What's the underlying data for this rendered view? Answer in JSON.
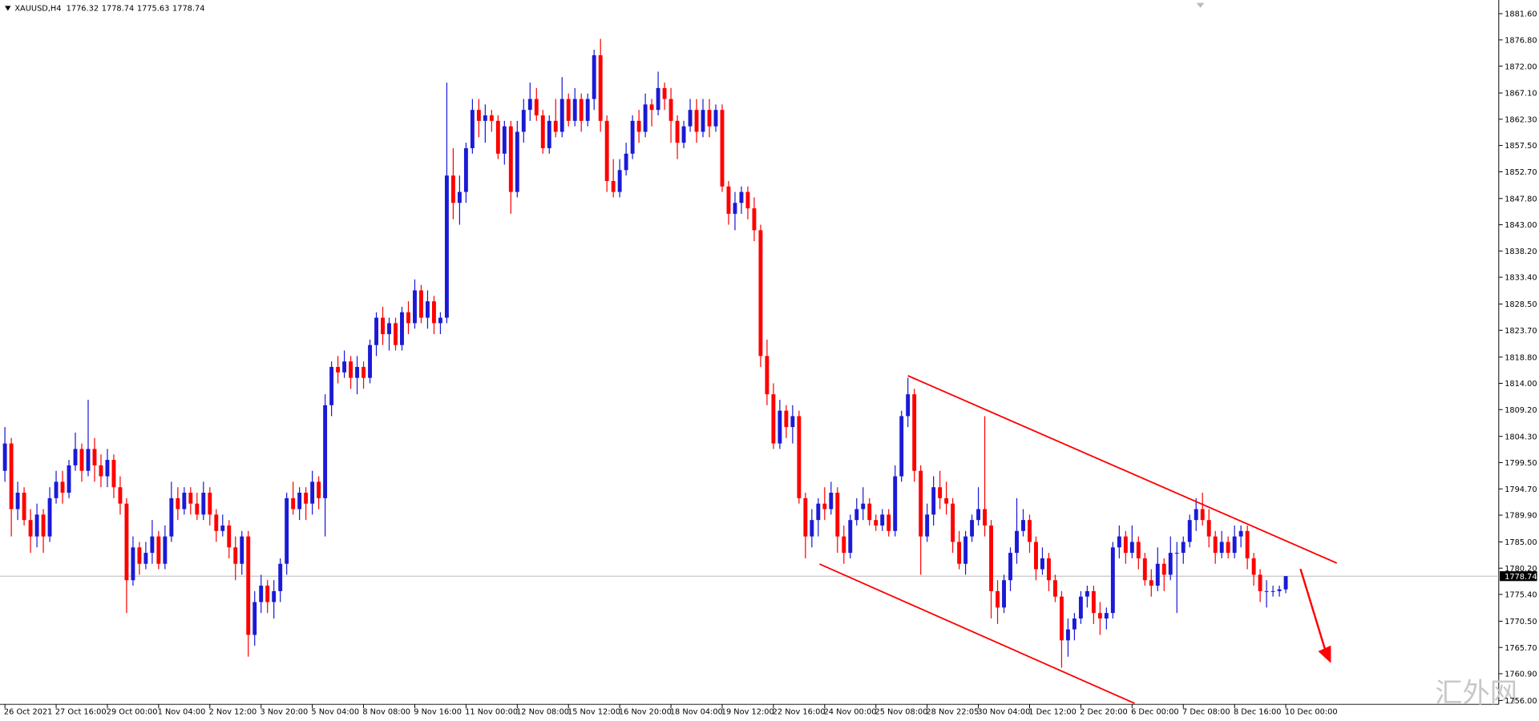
{
  "chart_data": {
    "type": "candlestick",
    "symbol": "XAUUSD,H4",
    "watermark": "汇外网",
    "up_color": "#1a1ad6",
    "down_color": "#ff0000",
    "current_price": 1778.74,
    "ylim": [
      1755.3,
      1884.1
    ],
    "yticks": [
      {
        "value": 1881.6,
        "label": "1881.60"
      },
      {
        "value": 1876.8,
        "label": "1876.80"
      },
      {
        "value": 1872,
        "label": "1872.00"
      },
      {
        "value": 1867.1,
        "label": "1867.10"
      },
      {
        "value": 1862.3,
        "label": "1862.30"
      },
      {
        "value": 1857.5,
        "label": "1857.50"
      },
      {
        "value": 1852.7,
        "label": "1852.70"
      },
      {
        "value": 1847.8,
        "label": "1847.80"
      },
      {
        "value": 1843,
        "label": "1843.00"
      },
      {
        "value": 1838.2,
        "label": "1838.20"
      },
      {
        "value": 1833.4,
        "label": "1833.40"
      },
      {
        "value": 1828.5,
        "label": "1828.50"
      },
      {
        "value": 1823.7,
        "label": "1823.70"
      },
      {
        "value": 1818.8,
        "label": "1818.80"
      },
      {
        "value": 1814,
        "label": "1814.00"
      },
      {
        "value": 1809.2,
        "label": "1809.20"
      },
      {
        "value": 1804.3,
        "label": "1804.30"
      },
      {
        "value": 1799.5,
        "label": "1799.50"
      },
      {
        "value": 1794.7,
        "label": "1794.70"
      },
      {
        "value": 1789.9,
        "label": "1789.90"
      },
      {
        "value": 1785,
        "label": "1785.00"
      },
      {
        "value": 1780.2,
        "label": "1780.20"
      },
      {
        "value": 1775.4,
        "label": "1775.40"
      },
      {
        "value": 1770.5,
        "label": "1770.50"
      },
      {
        "value": 1765.7,
        "label": "1765.70"
      },
      {
        "value": 1760.9,
        "label": "1760.90"
      },
      {
        "value": 1756,
        "label": "1756.00"
      }
    ],
    "categories": [
      "26 Oct 2021",
      null,
      null,
      null,
      null,
      null,
      null,
      null,
      "27 Oct 16:00",
      null,
      null,
      null,
      null,
      null,
      null,
      null,
      "29 Oct 00:00",
      null,
      null,
      null,
      null,
      null,
      null,
      null,
      "1 Nov 04:00",
      null,
      null,
      null,
      null,
      null,
      null,
      null,
      "2 Nov 12:00",
      null,
      null,
      null,
      null,
      null,
      null,
      null,
      "3 Nov 20:00",
      null,
      null,
      null,
      null,
      null,
      null,
      null,
      "5 Nov 04:00",
      null,
      null,
      null,
      null,
      null,
      null,
      null,
      "8 Nov 08:00",
      null,
      null,
      null,
      null,
      null,
      null,
      null,
      "9 Nov 16:00",
      null,
      null,
      null,
      null,
      null,
      null,
      null,
      "11 Nov 00:00",
      null,
      null,
      null,
      null,
      null,
      null,
      null,
      "12 Nov 08:00",
      null,
      null,
      null,
      null,
      null,
      null,
      null,
      "15 Nov 12:00",
      null,
      null,
      null,
      null,
      null,
      null,
      null,
      "16 Nov 20:00",
      null,
      null,
      null,
      null,
      null,
      null,
      null,
      "18 Nov 04:00",
      null,
      null,
      null,
      null,
      null,
      null,
      null,
      "19 Nov 12:00",
      null,
      null,
      null,
      null,
      null,
      null,
      null,
      "22 Nov 16:00",
      null,
      null,
      null,
      null,
      null,
      null,
      null,
      "24 Nov 00:00",
      null,
      null,
      null,
      null,
      null,
      null,
      null,
      "25 Nov 08:00",
      null,
      null,
      null,
      null,
      null,
      null,
      null,
      "28 Nov 22:05",
      null,
      null,
      null,
      null,
      null,
      null,
      null,
      "30 Nov 04:00",
      null,
      null,
      null,
      null,
      null,
      null,
      null,
      "1 Dec 12:00",
      null,
      null,
      null,
      null,
      null,
      null,
      null,
      "2 Dec 20:00",
      null,
      null,
      null,
      null,
      null,
      null,
      null,
      "6 Dec 00:00",
      null,
      null,
      null,
      null,
      null,
      null,
      null,
      "7 Dec 08:00",
      null,
      null,
      null,
      null,
      null,
      null,
      null,
      "8 Dec 16:00",
      null,
      null,
      null,
      null,
      null,
      null,
      null,
      "10 Dec 00:00"
    ],
    "open": [
      1798,
      1803,
      1791,
      1794,
      1789,
      1786,
      1790,
      1786,
      1793,
      1796,
      1794,
      1799,
      1802,
      1798,
      1802,
      1799,
      1797,
      1800,
      1795,
      1792,
      1778,
      1784,
      1781,
      1783,
      1786,
      1781,
      1786,
      1793,
      1791,
      1794,
      1792,
      1790,
      1794,
      1790,
      1787,
      1788,
      1784,
      1781,
      1786,
      1768,
      1774,
      1777,
      1774,
      1776,
      1781,
      1793,
      1791,
      1794,
      1792,
      1796,
      1793,
      1810,
      1817,
      1816,
      1818,
      1815,
      1817,
      1815,
      1821,
      1826,
      1823,
      1825,
      1821,
      1827,
      1825,
      1831,
      1826,
      1829,
      1825,
      1826,
      1852,
      1847,
      1849,
      1857,
      1864,
      1862,
      1863,
      1862,
      1856,
      1861,
      1849,
      1860,
      1864,
      1866,
      1863,
      1857,
      1862,
      1860,
      1866,
      1862,
      1866,
      1862,
      1866,
      1874,
      1862,
      1851,
      1849,
      1853,
      1856,
      1862,
      1860,
      1865,
      1864,
      1868,
      1866,
      1862,
      1858,
      1861,
      1864,
      1860,
      1864,
      1861,
      1864,
      1850,
      1845,
      1847,
      1849,
      1846,
      1842,
      1819,
      1812,
      1803,
      1809,
      1806,
      1808,
      1793,
      1786,
      1789,
      1792,
      1791,
      1794,
      1786,
      1783,
      1789,
      1791,
      1792,
      1789,
      1788,
      1790,
      1787,
      1797,
      1808,
      1812,
      1798,
      1786,
      1790,
      1795,
      1793,
      1792,
      1785,
      1781,
      1786,
      1789,
      1791,
      1788,
      1776,
      1773,
      1778,
      1783,
      1787,
      1789,
      1785,
      1780,
      1782,
      1778,
      1775,
      1767,
      1769,
      1771,
      1775,
      1776,
      1772,
      1771,
      1772,
      1784,
      1786,
      1783,
      1785,
      1782,
      1778,
      1777,
      1781,
      1779,
      1783,
      1783,
      1785,
      1789,
      1791,
      1789,
      1786,
      1783,
      1785,
      1783,
      1786,
      1787,
      1782,
      1779,
      1776,
      1776,
      1776,
      1776.32
    ],
    "high": [
      1806,
      1804,
      1796,
      1795,
      1791,
      1792,
      1791,
      1795,
      1798,
      1798,
      1800,
      1805,
      1803,
      1811,
      1804,
      1801,
      1802,
      1801,
      1797,
      1793,
      1786,
      1785,
      1785,
      1789,
      1787,
      1788,
      1796,
      1795,
      1795,
      1795,
      1794,
      1796,
      1795,
      1791,
      1790,
      1789,
      1786,
      1787,
      1787,
      1776,
      1779,
      1778,
      1778,
      1782,
      1794,
      1796,
      1795,
      1795,
      1798,
      1797,
      1812,
      1818,
      1819,
      1820,
      1819,
      1819,
      1818,
      1822,
      1827,
      1828,
      1826,
      1826,
      1828,
      1829,
      1833,
      1832,
      1831,
      1830,
      1827,
      1869,
      1857,
      1852,
      1858,
      1866,
      1866,
      1865,
      1864,
      1863,
      1862,
      1862,
      1862,
      1866,
      1869,
      1868,
      1864,
      1863,
      1866,
      1870,
      1867,
      1868,
      1867,
      1867,
      1875,
      1877,
      1863,
      1855,
      1855,
      1858,
      1863,
      1864,
      1867,
      1866,
      1871,
      1869,
      1868,
      1863,
      1862,
      1866,
      1866,
      1866,
      1866,
      1865,
      1865,
      1851,
      1849,
      1850,
      1850,
      1848,
      1843,
      1822,
      1814,
      1811,
      1810,
      1810,
      1809,
      1794,
      1791,
      1793,
      1795,
      1796,
      1795,
      1788,
      1790,
      1793,
      1795,
      1793,
      1790,
      1791,
      1791,
      1799,
      1809,
      1815,
      1813,
      1799,
      1792,
      1797,
      1798,
      1796,
      1793,
      1787,
      1787,
      1790,
      1795,
      1808,
      1789,
      1778,
      1779,
      1784,
      1793,
      1791,
      1790,
      1786,
      1784,
      1783,
      1779,
      1776,
      1771,
      1772,
      1776,
      1777,
      1777,
      1774,
      1773,
      1785,
      1788,
      1787,
      1788,
      1786,
      1783,
      1780,
      1784,
      1782,
      1786,
      1785,
      1786,
      1790,
      1793,
      1794,
      1791,
      1787,
      1787,
      1786,
      1788,
      1788,
      1788,
      1783,
      1780,
      1778,
      1777,
      1777,
      1778.74
    ],
    "low": [
      1796,
      1786,
      1789,
      1788,
      1783,
      1784,
      1783,
      1785,
      1792,
      1792,
      1793,
      1798,
      1796,
      1797,
      1796,
      1795,
      1795,
      1793,
      1790,
      1772,
      1777,
      1779,
      1780,
      1781,
      1780,
      1780,
      1785,
      1789,
      1790,
      1790,
      1789,
      1789,
      1788,
      1785,
      1786,
      1782,
      1778,
      1779,
      1764,
      1766,
      1772,
      1772,
      1771,
      1774,
      1779,
      1790,
      1789,
      1789,
      1790,
      1791,
      1786,
      1808,
      1814,
      1815,
      1813,
      1812,
      1813,
      1814,
      1819,
      1821,
      1820,
      1820,
      1820,
      1823,
      1824,
      1825,
      1824,
      1823,
      1823,
      1825,
      1844,
      1843,
      1847,
      1856,
      1859,
      1858,
      1860,
      1855,
      1854,
      1845,
      1848,
      1858,
      1862,
      1862,
      1856,
      1856,
      1859,
      1859,
      1861,
      1861,
      1860,
      1861,
      1864,
      1860,
      1849,
      1848,
      1848,
      1852,
      1855,
      1858,
      1859,
      1861,
      1863,
      1864,
      1858,
      1855,
      1857,
      1860,
      1858,
      1859,
      1859,
      1860,
      1849,
      1843,
      1842,
      1845,
      1844,
      1840,
      1817,
      1810,
      1802,
      1802,
      1804,
      1803,
      1792,
      1782,
      1784,
      1786,
      1789,
      1790,
      1783,
      1781,
      1782,
      1788,
      1789,
      1788,
      1787,
      1787,
      1786,
      1786,
      1796,
      1806,
      1796,
      1779,
      1785,
      1788,
      1791,
      1790,
      1783,
      1780,
      1779,
      1785,
      1788,
      1786,
      1771,
      1770,
      1772,
      1776,
      1781,
      1786,
      1783,
      1778,
      1779,
      1776,
      1774,
      1762,
      1764,
      1767,
      1770,
      1773,
      1770,
      1768,
      1769,
      1771,
      1782,
      1781,
      1782,
      1780,
      1777,
      1775,
      1776,
      1776,
      1778,
      1772,
      1781,
      1784,
      1787,
      1788,
      1784,
      1781,
      1782,
      1782,
      1782,
      1784,
      1780,
      1777,
      1774,
      1773,
      1775,
      1775,
      1775.63
    ],
    "close": [
      1803,
      1791,
      1794,
      1789,
      1786,
      1790,
      1786,
      1793,
      1796,
      1794,
      1799,
      1802,
      1798,
      1802,
      1799,
      1797,
      1800,
      1795,
      1792,
      1778,
      1784,
      1781,
      1783,
      1786,
      1781,
      1786,
      1793,
      1791,
      1794,
      1792,
      1790,
      1794,
      1790,
      1787,
      1788,
      1784,
      1781,
      1786,
      1768,
      1774,
      1777,
      1774,
      1776,
      1781,
      1793,
      1791,
      1794,
      1792,
      1796,
      1793,
      1810,
      1817,
      1816,
      1818,
      1815,
      1817,
      1815,
      1821,
      1826,
      1823,
      1825,
      1821,
      1827,
      1825,
      1831,
      1826,
      1829,
      1825,
      1826,
      1852,
      1847,
      1849,
      1857,
      1864,
      1862,
      1863,
      1862,
      1856,
      1861,
      1849,
      1860,
      1864,
      1866,
      1863,
      1857,
      1862,
      1860,
      1866,
      1862,
      1866,
      1862,
      1866,
      1874,
      1862,
      1851,
      1849,
      1853,
      1856,
      1862,
      1860,
      1865,
      1864,
      1868,
      1866,
      1862,
      1858,
      1861,
      1864,
      1860,
      1864,
      1861,
      1864,
      1850,
      1845,
      1847,
      1849,
      1846,
      1842,
      1819,
      1812,
      1803,
      1809,
      1806,
      1808,
      1793,
      1786,
      1789,
      1792,
      1791,
      1794,
      1786,
      1783,
      1789,
      1791,
      1792,
      1789,
      1788,
      1790,
      1787,
      1797,
      1808,
      1812,
      1798,
      1786,
      1790,
      1795,
      1793,
      1792,
      1785,
      1781,
      1786,
      1789,
      1791,
      1788,
      1776,
      1773,
      1778,
      1783,
      1787,
      1789,
      1785,
      1780,
      1782,
      1778,
      1775,
      1767,
      1769,
      1771,
      1775,
      1776,
      1772,
      1771,
      1772,
      1784,
      1786,
      1783,
      1785,
      1782,
      1778,
      1777,
      1781,
      1779,
      1783,
      1783,
      1785,
      1789,
      1791,
      1789,
      1786,
      1783,
      1785,
      1783,
      1786,
      1787,
      1782,
      1779,
      1776,
      1776,
      1776,
      1776.32,
      1778.74
    ]
  }
}
